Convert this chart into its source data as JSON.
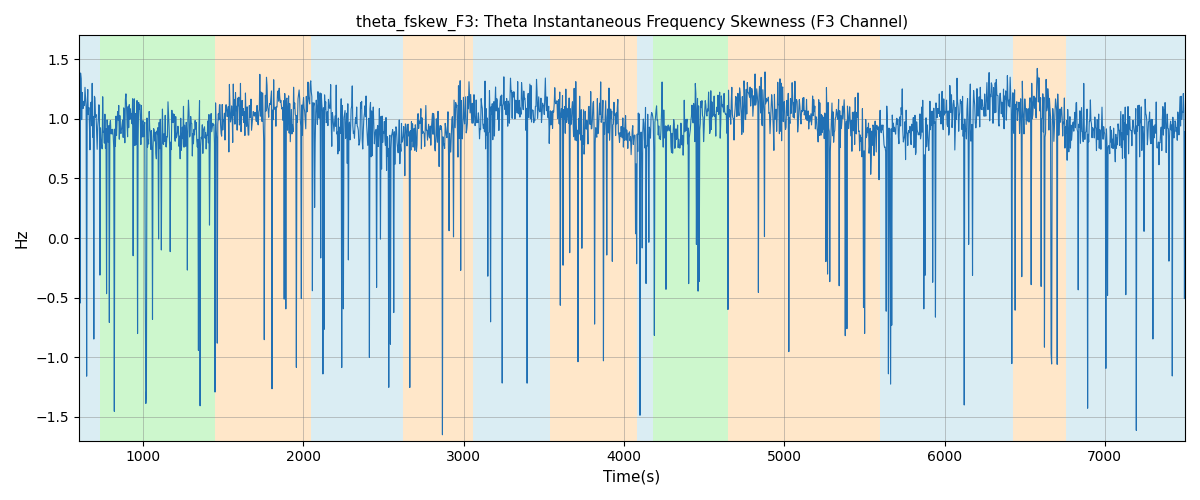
{
  "title": "theta_fskew_F3: Theta Instantaneous Frequency Skewness (F3 Channel)",
  "xlabel": "Time(s)",
  "ylabel": "Hz",
  "xlim": [
    600,
    7500
  ],
  "ylim": [
    -1.7,
    1.7
  ],
  "yticks": [
    -1.5,
    -1.0,
    -0.5,
    0.0,
    0.5,
    1.0,
    1.5
  ],
  "xticks": [
    1000,
    2000,
    3000,
    4000,
    5000,
    6000,
    7000
  ],
  "line_color": "#2070b4",
  "line_width": 0.8,
  "bg_regions": [
    {
      "xmin": 600,
      "xmax": 730,
      "color": "#add8e6",
      "alpha": 0.45
    },
    {
      "xmin": 730,
      "xmax": 1450,
      "color": "#90ee90",
      "alpha": 0.45
    },
    {
      "xmin": 1450,
      "xmax": 2050,
      "color": "#ffd59e",
      "alpha": 0.55
    },
    {
      "xmin": 2050,
      "xmax": 2620,
      "color": "#add8e6",
      "alpha": 0.45
    },
    {
      "xmin": 2620,
      "xmax": 3060,
      "color": "#ffd59e",
      "alpha": 0.55
    },
    {
      "xmin": 3060,
      "xmax": 3540,
      "color": "#add8e6",
      "alpha": 0.45
    },
    {
      "xmin": 3540,
      "xmax": 4080,
      "color": "#ffd59e",
      "alpha": 0.55
    },
    {
      "xmin": 4080,
      "xmax": 4180,
      "color": "#add8e6",
      "alpha": 0.45
    },
    {
      "xmin": 4180,
      "xmax": 4650,
      "color": "#90ee90",
      "alpha": 0.45
    },
    {
      "xmin": 4650,
      "xmax": 5600,
      "color": "#ffd59e",
      "alpha": 0.55
    },
    {
      "xmin": 5600,
      "xmax": 6430,
      "color": "#add8e6",
      "alpha": 0.45
    },
    {
      "xmin": 6430,
      "xmax": 6760,
      "color": "#ffd59e",
      "alpha": 0.55
    },
    {
      "xmin": 6760,
      "xmax": 7500,
      "color": "#add8e6",
      "alpha": 0.45
    }
  ],
  "figsize": [
    12,
    5
  ],
  "dpi": 100
}
